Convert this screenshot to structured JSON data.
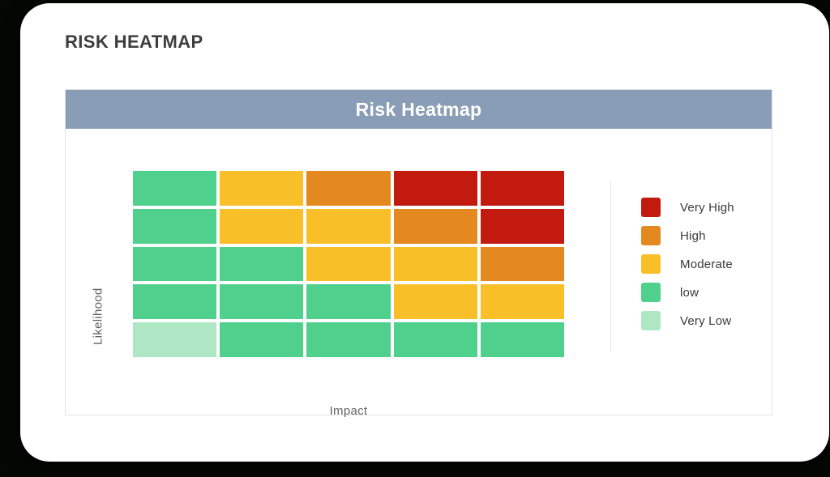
{
  "page": {
    "title": "RISK HEATMAP"
  },
  "panel": {
    "header_title": "Risk Heatmap"
  },
  "chart_data": {
    "type": "heatmap",
    "title": "Risk Heatmap",
    "xlabel": "Impact",
    "ylabel": "Likelihood",
    "rows": 5,
    "cols": 5,
    "legend_position": "right",
    "grid_lines": false,
    "levels": {
      "very_high": {
        "label": "Very High",
        "color": "#c21a0f"
      },
      "high": {
        "label": "High",
        "color": "#e4891f"
      },
      "moderate": {
        "label": "Moderate",
        "color": "#f9bf29"
      },
      "low": {
        "label": "low",
        "color": "#4fd08c"
      },
      "very_low": {
        "label": "Very Low",
        "color": "#aee7c3"
      }
    },
    "grid": [
      [
        "low",
        "moderate",
        "high",
        "very_high",
        "very_high"
      ],
      [
        "low",
        "moderate",
        "moderate",
        "high",
        "very_high"
      ],
      [
        "low",
        "low",
        "moderate",
        "moderate",
        "high"
      ],
      [
        "low",
        "low",
        "low",
        "moderate",
        "moderate"
      ],
      [
        "very_low",
        "low",
        "low",
        "low",
        "low"
      ]
    ],
    "legend": [
      {
        "level": "very_high",
        "label": "Very High"
      },
      {
        "level": "high",
        "label": "High"
      },
      {
        "level": "moderate",
        "label": "Moderate"
      },
      {
        "level": "low",
        "label": "low"
      },
      {
        "level": "very_low",
        "label": "Very Low"
      }
    ]
  },
  "colors": {
    "page_bg": "#050705",
    "card_bg": "#ffffff",
    "header_bg": "#8a9db6",
    "header_text": "#ffffff",
    "panel_border": "#e3e3e3",
    "title_text": "#3d3d3d",
    "axis_label_text": "#646464",
    "legend_text": "#3a3a3a"
  }
}
